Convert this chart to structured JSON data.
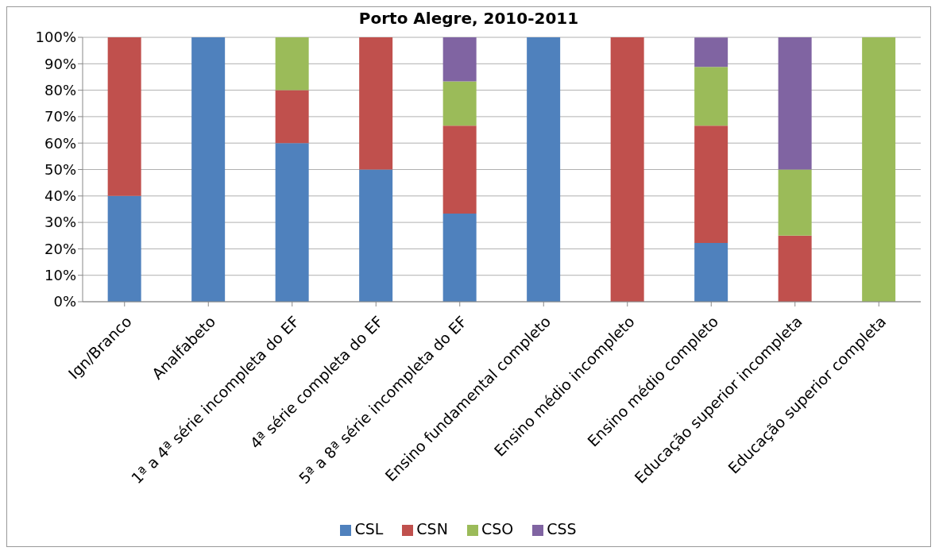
{
  "chart_data": {
    "type": "bar",
    "title": "Porto Alegre, 2010-2011",
    "stacked": true,
    "categories": [
      "Ign/Branco",
      "Analfabeto",
      "1ª a 4ª série incompleta do EF",
      "4ª série completa do EF",
      "5ª a 8ª série incompleta do EF",
      "Ensino fundamental completo",
      "Ensino médio incompleto",
      "Ensino médio completo",
      "Educação superior incompleta",
      "Educação superior completa"
    ],
    "series": [
      {
        "name": "CSL",
        "color": "#4f81bd",
        "values": [
          40,
          100,
          60,
          50,
          33.3,
          100,
          0,
          22.2,
          0,
          0
        ]
      },
      {
        "name": "CSN",
        "color": "#c0504d",
        "values": [
          60,
          0,
          20,
          50,
          33.3,
          0,
          100,
          44.4,
          25,
          0
        ]
      },
      {
        "name": "CSO",
        "color": "#9bbb59",
        "values": [
          0,
          0,
          20,
          0,
          16.7,
          0,
          0,
          22.2,
          25,
          100
        ]
      },
      {
        "name": "CSS",
        "color": "#8064a2",
        "values": [
          0,
          0,
          0,
          0,
          16.7,
          0,
          0,
          11.1,
          50,
          0
        ]
      }
    ],
    "ylim": [
      0,
      100
    ],
    "yticks": [
      {
        "value": 0,
        "label": "0%"
      },
      {
        "value": 10,
        "label": "10%"
      },
      {
        "value": 20,
        "label": "20%"
      },
      {
        "value": 30,
        "label": "30%"
      },
      {
        "value": 40,
        "label": "40%"
      },
      {
        "value": 50,
        "label": "50%"
      },
      {
        "value": 60,
        "label": "60%"
      },
      {
        "value": 70,
        "label": "70%"
      },
      {
        "value": 80,
        "label": "80%"
      },
      {
        "value": 90,
        "label": "90%"
      },
      {
        "value": 100,
        "label": "100%"
      }
    ],
    "grid": "y",
    "legend": "bottom"
  }
}
